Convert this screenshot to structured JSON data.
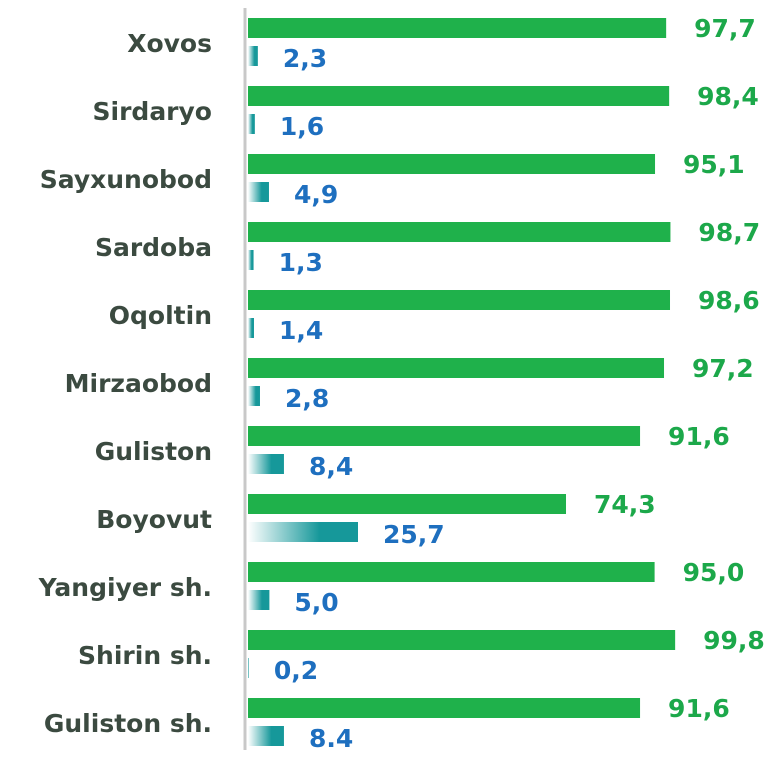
{
  "chart_data": {
    "type": "bar",
    "orientation": "horizontal",
    "categories": [
      "Xovos",
      "Sirdaryo",
      "Sayxunobod",
      "Sardoba",
      "Oqoltin",
      "Mirzaobod",
      "Guliston",
      "Boyovut",
      "Yangiyer sh.",
      "Shirin sh.",
      "Guliston  sh."
    ],
    "xlim": [
      0,
      100
    ],
    "series": [
      {
        "color": "#1fb14b",
        "label_color": "#1ca84a",
        "values": [
          97.7,
          98.4,
          95.1,
          98.7,
          98.6,
          97.2,
          91.6,
          74.3,
          95.0,
          99.8,
          91.6
        ],
        "value_labels": [
          "97,7",
          "98,4",
          "95,1",
          "98,7",
          "98,6",
          "97,2",
          "91,6",
          "74,3",
          "95,0",
          "99,8",
          "91,6"
        ]
      },
      {
        "color": "#16989a",
        "label_color": "#1e6fbf",
        "values": [
          2.3,
          1.6,
          4.9,
          1.3,
          1.4,
          2.8,
          8.4,
          25.7,
          5.0,
          0.2,
          8.4
        ],
        "value_labels": [
          "2,3",
          "1,6",
          "4,9",
          "1,3",
          "1,4",
          "2,8",
          "8,4",
          "25,7",
          "5,0",
          "0,2",
          "8.4"
        ]
      }
    ]
  }
}
